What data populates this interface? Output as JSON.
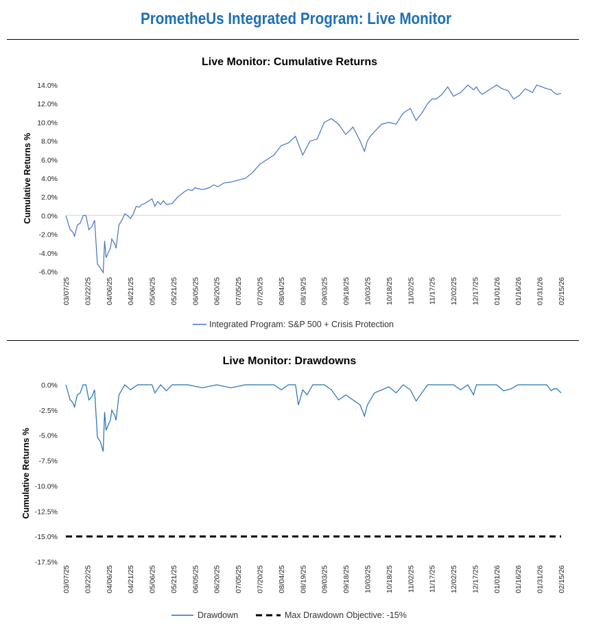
{
  "page": {
    "title": "PrometheUs Integrated Program: Live Monitor"
  },
  "colors": {
    "title": "#1f6fb5",
    "series": "#4472c4",
    "drawdown_line": "#1f6fb5",
    "objective": "#000000"
  },
  "chart_data": [
    {
      "type": "line",
      "title": "Live Monitor: Cumulative Returns",
      "ylabel": "Cumulative Returns %",
      "xlabel": "",
      "ylim": [
        -6.0,
        14.0
      ],
      "yticks": [
        -6,
        -4,
        -2,
        0,
        2,
        4,
        6,
        8,
        10,
        12,
        14
      ],
      "ytick_labels": [
        "-6.0%",
        "-4.0%",
        "-2.0%",
        "0.0%",
        "2.0%",
        "4.0%",
        "6.0%",
        "8.0%",
        "10.0%",
        "12.0%",
        "14.0%"
      ],
      "xrange": [
        0,
        345
      ],
      "x_tick_positions": [
        0,
        15,
        30,
        45,
        60,
        75,
        90,
        105,
        120,
        135,
        150,
        165,
        180,
        195,
        210,
        225,
        240,
        255,
        270,
        285,
        300,
        315,
        330,
        345
      ],
      "x_tick_labels": [
        "03/07/25",
        "03/22/25",
        "04/06/25",
        "04/21/25",
        "05/06/25",
        "05/21/25",
        "06/05/25",
        "06/20/25",
        "07/05/25",
        "07/20/25",
        "08/04/25",
        "08/19/25",
        "09/03/25",
        "09/18/25",
        "10/03/25",
        "10/18/25",
        "11/02/25",
        "11/17/25",
        "12/02/25",
        "12/17/25",
        "01/01/26",
        "01/16/26",
        "01/31/26",
        "02/15/26"
      ],
      "legend_position": "bottom",
      "series": [
        {
          "name": "Integrated Program: S&P 500 + Crisis Protection",
          "x": [
            0,
            3,
            5,
            6,
            8,
            10,
            12,
            14,
            16,
            18,
            20,
            22,
            24,
            26,
            27,
            28,
            30,
            31,
            32,
            33,
            34,
            35,
            37,
            39,
            41,
            43,
            45,
            47,
            49,
            51,
            53,
            55,
            57,
            60,
            62,
            64,
            66,
            68,
            70,
            74,
            78,
            82,
            85,
            88,
            90,
            92,
            95,
            98,
            100,
            103,
            106,
            110,
            115,
            120,
            125,
            130,
            135,
            140,
            145,
            150,
            155,
            160,
            165,
            170,
            175,
            180,
            185,
            190,
            195,
            200,
            205,
            208,
            210,
            212,
            215,
            220,
            225,
            230,
            235,
            240,
            244,
            248,
            252,
            255,
            258,
            262,
            266,
            270,
            275,
            280,
            284,
            286,
            288,
            290,
            295,
            300,
            304,
            308,
            312,
            316,
            320,
            325,
            328,
            330,
            335,
            338,
            340,
            342,
            345
          ],
          "values": [
            0.0,
            -1.5,
            -1.8,
            -2.2,
            -1.0,
            -0.8,
            0.0,
            0.0,
            -1.5,
            -1.2,
            -0.5,
            -5.2,
            -5.6,
            -6.1,
            -2.7,
            -4.5,
            -3.8,
            -3.5,
            -2.5,
            -2.8,
            -3.0,
            -3.5,
            -1.0,
            -0.5,
            0.2,
            0.0,
            -0.3,
            0.2,
            1.0,
            0.9,
            1.2,
            1.3,
            1.5,
            1.8,
            1.0,
            1.5,
            1.2,
            1.6,
            1.2,
            1.3,
            2.0,
            2.5,
            2.8,
            2.7,
            3.0,
            2.9,
            2.8,
            2.9,
            3.0,
            3.3,
            3.1,
            3.5,
            3.6,
            3.8,
            4.0,
            4.6,
            5.5,
            6.0,
            6.5,
            7.5,
            7.8,
            8.5,
            6.5,
            8.0,
            8.2,
            10.0,
            10.4,
            9.8,
            8.7,
            9.5,
            8.0,
            6.9,
            8.0,
            8.5,
            9.0,
            9.8,
            10.0,
            9.8,
            11.0,
            11.5,
            10.2,
            11.0,
            12.0,
            12.5,
            12.5,
            13.0,
            13.8,
            12.8,
            13.2,
            14.0,
            13.5,
            13.8,
            13.3,
            13.0,
            13.5,
            14.0,
            13.6,
            13.4,
            12.5,
            12.9,
            13.6,
            13.2,
            14.0,
            13.9,
            13.6,
            13.5,
            13.2,
            13.0,
            13.1
          ]
        }
      ]
    },
    {
      "type": "line",
      "title": "Live Monitor: Drawdowns",
      "ylabel": "Cumulative Returns %",
      "xlabel": "",
      "ylim": [
        -17.5,
        0.0
      ],
      "yticks": [
        0,
        -2.5,
        -5,
        -7.5,
        -10,
        -12.5,
        -15,
        -17.5
      ],
      "ytick_labels": [
        "0.0%",
        "-2.5%",
        "-5.0%",
        "-7.5%",
        "-10.0%",
        "-12.5%",
        "-15.0%",
        "-17.5%"
      ],
      "xrange": [
        0,
        345
      ],
      "x_tick_positions": [
        0,
        15,
        30,
        45,
        60,
        75,
        90,
        105,
        120,
        135,
        150,
        165,
        180,
        195,
        210,
        225,
        240,
        255,
        270,
        285,
        300,
        315,
        330,
        345
      ],
      "x_tick_labels": [
        "03/07/25",
        "03/22/25",
        "04/06/25",
        "04/21/25",
        "05/06/25",
        "05/21/25",
        "06/05/25",
        "06/20/25",
        "07/05/25",
        "07/20/25",
        "08/04/25",
        "08/19/25",
        "09/03/25",
        "09/18/25",
        "10/03/25",
        "10/18/25",
        "11/02/25",
        "11/17/25",
        "12/02/25",
        "12/17/25",
        "01/01/26",
        "01/16/26",
        "01/31/26",
        "02/15/26"
      ],
      "legend_position": "bottom",
      "series": [
        {
          "name": "Drawdown",
          "x": [
            0,
            3,
            5,
            6,
            8,
            10,
            12,
            14,
            16,
            18,
            20,
            22,
            24,
            26,
            27,
            28,
            30,
            31,
            32,
            33,
            34,
            35,
            37,
            39,
            41,
            45,
            50,
            55,
            60,
            62,
            66,
            70,
            74,
            78,
            85,
            95,
            105,
            115,
            125,
            135,
            145,
            150,
            155,
            160,
            162,
            165,
            168,
            172,
            176,
            180,
            185,
            190,
            195,
            200,
            205,
            208,
            210,
            215,
            220,
            225,
            230,
            235,
            240,
            244,
            248,
            252,
            255,
            260,
            265,
            270,
            275,
            280,
            284,
            286,
            290,
            295,
            300,
            305,
            310,
            315,
            320,
            325,
            330,
            335,
            338,
            340,
            342,
            345
          ],
          "values": [
            0.0,
            -1.5,
            -1.8,
            -2.2,
            -1.0,
            -0.8,
            0.0,
            0.0,
            -1.5,
            -1.2,
            -0.5,
            -5.2,
            -5.6,
            -6.6,
            -2.7,
            -4.5,
            -3.8,
            -3.5,
            -2.5,
            -2.8,
            -3.0,
            -3.5,
            -1.0,
            -0.5,
            0.0,
            -0.5,
            0.0,
            0.0,
            0.0,
            -0.8,
            0.0,
            -0.6,
            0.0,
            0.0,
            0.0,
            -0.3,
            0.0,
            -0.3,
            0.0,
            0.0,
            0.0,
            -0.5,
            0.0,
            0.0,
            -2.0,
            -0.5,
            -1.0,
            0.0,
            0.0,
            0.0,
            -0.5,
            -1.5,
            -1.0,
            -1.5,
            -2.0,
            -3.1,
            -2.0,
            -0.8,
            -0.5,
            -0.2,
            -0.8,
            0.0,
            -0.5,
            -1.6,
            -0.8,
            0.0,
            0.0,
            0.0,
            0.0,
            0.0,
            -0.5,
            0.0,
            -1.0,
            0.0,
            0.0,
            0.0,
            0.0,
            -0.6,
            -0.4,
            0.0,
            0.0,
            0.0,
            0.0,
            0.0,
            -0.6,
            -0.4,
            -0.4,
            -0.8
          ]
        }
      ],
      "reference_line": {
        "name": "Max Drawdown Objective: -15%",
        "value": -15.0,
        "style": "dashed"
      }
    }
  ]
}
